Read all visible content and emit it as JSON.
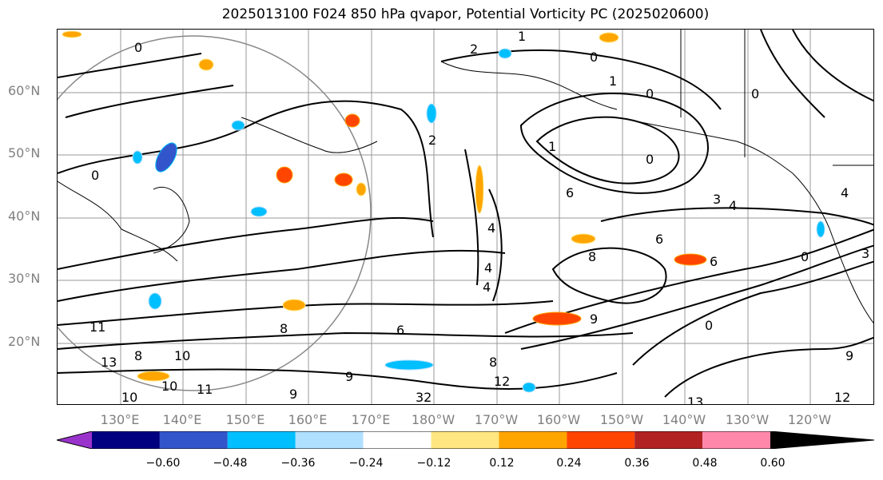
{
  "title": "2025013100 F024 850 hPa qvapor, Potential Vorticity PC (2025020600)",
  "lat_labels": [
    "60°N",
    "50°N",
    "40°N",
    "30°N",
    "20°N"
  ],
  "lon_labels": [
    "130°E",
    "140°E",
    "150°E",
    "160°E",
    "170°E",
    "180°W",
    "170°W",
    "160°W",
    "150°W",
    "140°W",
    "130°W",
    "120°W"
  ],
  "contour_labels": [
    "0",
    "0",
    "0",
    "0",
    "0",
    "0",
    "0",
    "0",
    "1",
    "1",
    "1",
    "2",
    "2",
    "3",
    "3",
    "4",
    "4",
    "4",
    "4",
    "4",
    "6",
    "6",
    "6",
    "6",
    "8",
    "8",
    "8",
    "8",
    "9",
    "9",
    "9",
    "9",
    "10",
    "10",
    "10",
    "11",
    "11",
    "12",
    "12",
    "13",
    "13",
    "32"
  ],
  "colorbar": {
    "colors": [
      "#9933cc",
      "#000080",
      "#3355cc",
      "#00bfff",
      "#b0e0ff",
      "#ffffff",
      "#ffe680",
      "#ffa500",
      "#ff4500",
      "#b22222",
      "#ff88aa"
    ],
    "tick_labels": [
      "−0.60",
      "−0.48",
      "−0.36",
      "−0.24",
      "−0.12",
      "0.12",
      "0.24",
      "0.36",
      "0.48",
      "0.60"
    ]
  }
}
